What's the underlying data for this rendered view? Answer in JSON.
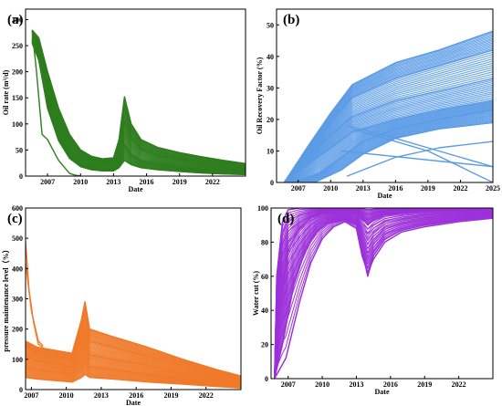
{
  "chart_data": [
    {
      "panel_label": "(a)",
      "type": "line",
      "xlabel": "Date",
      "ylabel": "Oil rate (m³/d)",
      "xlim": [
        2005,
        2025
      ],
      "ylim": [
        0,
        320
      ],
      "xticks": [
        "2007",
        "2010",
        "2013",
        "2016",
        "2019",
        "2022"
      ],
      "yticks": [
        "0",
        "50",
        "100",
        "150",
        "200",
        "250",
        "300"
      ],
      "color": "#2e7d1e",
      "series": [
        {
          "x": [
            2005.6,
            2006.2,
            2007.0,
            2008.0,
            2009.0,
            2010.0,
            2011.0,
            2012.0,
            2013.0,
            2013.5,
            2014.0,
            2014.6,
            2015.5,
            2017.0,
            2019.0,
            2021.0,
            2023.0,
            2025.0
          ],
          "y": [
            280,
            265,
            200,
            130,
            80,
            50,
            38,
            33,
            35,
            70,
            152,
            100,
            70,
            55,
            45,
            37,
            30,
            24
          ]
        },
        {
          "x": [
            2005.6,
            2006.2,
            2007.0,
            2008.0,
            2009.0,
            2010.0,
            2011.0,
            2012.0,
            2013.0,
            2013.5,
            2014.0,
            2014.6,
            2015.5,
            2017.0,
            2019.0,
            2021.0,
            2023.0,
            2025.0
          ],
          "y": [
            270,
            250,
            175,
            105,
            62,
            38,
            28,
            25,
            26,
            48,
            105,
            72,
            52,
            40,
            32,
            25,
            19,
            14
          ]
        },
        {
          "x": [
            2005.6,
            2006.2,
            2007.0,
            2008.0,
            2009.0,
            2010.0,
            2011.0,
            2012.0,
            2013.0,
            2013.5,
            2014.0,
            2014.6,
            2015.5,
            2017.0,
            2019.0,
            2021.0,
            2023.0,
            2025.0
          ],
          "y": [
            262,
            235,
            150,
            85,
            45,
            25,
            18,
            15,
            16,
            28,
            60,
            42,
            30,
            24,
            18,
            13,
            9,
            6
          ]
        },
        {
          "x": [
            2005.6,
            2006.2,
            2007.0,
            2008.0,
            2009.0,
            2010.0,
            2011.0,
            2012.0,
            2013.0,
            2013.5,
            2014.0,
            2014.6,
            2015.5,
            2017.0,
            2019.0,
            2021.0,
            2023.0,
            2025.0
          ],
          "y": [
            255,
            222,
            130,
            68,
            34,
            18,
            12,
            10,
            10,
            16,
            30,
            22,
            16,
            12,
            9,
            6,
            4,
            3
          ]
        },
        {
          "x": [
            2005.6,
            2006.0,
            2006.5,
            2007.0,
            2007.5,
            2008.0,
            2009.0,
            2009.5,
            2010.0
          ],
          "y": [
            280,
            200,
            80,
            70,
            50,
            30,
            5,
            2,
            0
          ]
        }
      ]
    },
    {
      "panel_label": "(b)",
      "type": "line",
      "xlabel": "Date",
      "ylabel": "Oil Recovery Factor (%)",
      "xlim": [
        2005,
        2025
      ],
      "ylim": [
        0,
        55
      ],
      "xticks": [
        "2007",
        "2010",
        "2013",
        "2016",
        "2019",
        "2022",
        "2025"
      ],
      "yticks": [
        "0",
        "10",
        "20",
        "30",
        "40",
        "50"
      ],
      "color": "#5b9be6",
      "series": [
        {
          "x": [
            2005.7,
            2008.0,
            2010.0,
            2012.0,
            2016.0,
            2020.0,
            2025.0
          ],
          "y": [
            0,
            12,
            22,
            31,
            38,
            42,
            48
          ]
        },
        {
          "x": [
            2005.7,
            2008.0,
            2010.0,
            2012.0,
            2016.0,
            2020.0,
            2025.0
          ],
          "y": [
            0,
            10,
            19,
            27,
            33,
            37,
            42
          ]
        },
        {
          "x": [
            2005.7,
            2008.0,
            2010.0,
            2012.0,
            2016.0,
            2020.0,
            2025.0
          ],
          "y": [
            0,
            8,
            15,
            21,
            26,
            29,
            33
          ]
        },
        {
          "x": [
            2005.7,
            2008.0,
            2010.0,
            2012.0,
            2016.0,
            2020.0,
            2025.0
          ],
          "y": [
            0,
            6,
            11,
            16,
            20,
            23,
            26
          ]
        },
        {
          "x": [
            2006.5,
            2009.0,
            2011.0,
            2013.0,
            2016.0,
            2020.0,
            2025.0
          ],
          "y": [
            0,
            3,
            8,
            13,
            17,
            20,
            23
          ]
        },
        {
          "x": [
            2008.5,
            2011.0,
            2013.0,
            2016.0,
            2020.0,
            2025.0
          ],
          "y": [
            0,
            4,
            9,
            14,
            17,
            19
          ]
        },
        {
          "x": [
            2011.5,
            2016.0,
            2020.0,
            2025.0
          ],
          "y": [
            2,
            8,
            11,
            13
          ]
        },
        {
          "x": [
            2011.5,
            2015.0,
            2020.0,
            2025.0
          ],
          "y": [
            18,
            15,
            10,
            5
          ]
        },
        {
          "x": [
            2012.0,
            2015.0,
            2019.0,
            2025.0
          ],
          "y": [
            17,
            14,
            10,
            0
          ]
        },
        {
          "x": [
            2011.0,
            2025.0
          ],
          "y": [
            10,
            5
          ]
        }
      ]
    },
    {
      "panel_label": "(c)",
      "type": "line",
      "xlabel": "Date",
      "ylabel": "pressure maintenance level（%）",
      "xlim": [
        2006.5,
        2025
      ],
      "ylim": [
        0,
        600
      ],
      "xticks": [
        "2007",
        "2010",
        "2013",
        "2016",
        "2019",
        "2022"
      ],
      "yticks": [
        "0",
        "100",
        "200",
        "300",
        "400",
        "500",
        "600"
      ],
      "color": "#f07a2a",
      "series": [
        {
          "x": [
            2006.5,
            2007.5,
            2009.0,
            2010.5,
            2011.3,
            2011.6,
            2012.0,
            2014.0,
            2017.0,
            2020.0,
            2023.0,
            2025.0
          ],
          "y": [
            160,
            140,
            130,
            120,
            230,
            290,
            200,
            175,
            140,
            100,
            65,
            45
          ]
        },
        {
          "x": [
            2006.5,
            2007.5,
            2009.0,
            2010.5,
            2011.3,
            2011.6,
            2012.0,
            2014.0,
            2017.0,
            2020.0,
            2023.0,
            2025.0
          ],
          "y": [
            140,
            120,
            110,
            100,
            170,
            210,
            160,
            140,
            110,
            80,
            50,
            35
          ]
        },
        {
          "x": [
            2006.5,
            2007.5,
            2009.0,
            2010.5,
            2011.3,
            2011.6,
            2012.0,
            2014.0,
            2017.0,
            2020.0,
            2023.0,
            2025.0
          ],
          "y": [
            110,
            95,
            85,
            75,
            120,
            150,
            115,
            100,
            80,
            55,
            35,
            22
          ]
        },
        {
          "x": [
            2006.5,
            2007.5,
            2009.0,
            2010.5,
            2011.3,
            2011.6,
            2012.0,
            2014.0,
            2017.0,
            2020.0,
            2023.0,
            2025.0
          ],
          "y": [
            75,
            65,
            58,
            50,
            80,
            100,
            75,
            65,
            50,
            35,
            20,
            12
          ]
        },
        {
          "x": [
            2006.5,
            2007.5,
            2009.0,
            2010.5,
            2011.3,
            2011.6,
            2012.0,
            2014.0,
            2017.0,
            2020.0,
            2023.0,
            2025.0
          ],
          "y": [
            40,
            35,
            30,
            25,
            40,
            50,
            40,
            35,
            25,
            18,
            10,
            5
          ]
        },
        {
          "x": [
            2006.5,
            2006.8,
            2007.2,
            2007.6,
            2008.0
          ],
          "y": [
            490,
            330,
            220,
            150,
            140
          ]
        },
        {
          "x": [
            2006.5,
            2007.0,
            2007.6,
            2008.0
          ],
          "y": [
            420,
            260,
            160,
            145
          ]
        }
      ]
    },
    {
      "panel_label": "(d)",
      "type": "line",
      "xlabel": "Date",
      "ylabel": "Water cut (%)",
      "xlim": [
        2005.5,
        2025
      ],
      "ylim": [
        0,
        100
      ],
      "xticks": [
        "2007",
        "2010",
        "2013",
        "2016",
        "2019",
        "2022"
      ],
      "yticks": [
        "0",
        "20",
        "40",
        "60",
        "80",
        "100"
      ],
      "color": "#9b30d9",
      "series": [
        {
          "x": [
            2005.8,
            2006.5,
            2007.5,
            2008.5,
            2009.5,
            2010.5,
            2012.0,
            2013.0,
            2013.5,
            2014.0,
            2014.5,
            2015.5,
            2017.0,
            2019.0,
            2022.0,
            2025.0
          ],
          "y": [
            0,
            20,
            55,
            75,
            86,
            91,
            93,
            90,
            75,
            60,
            72,
            82,
            87,
            90,
            93,
            95
          ]
        },
        {
          "x": [
            2005.8,
            2006.2,
            2007.0,
            2008.0,
            2009.0,
            2010.0,
            2012.0,
            2013.0,
            2013.5,
            2014.0,
            2014.5,
            2015.5,
            2017.0,
            2019.0,
            2022.0,
            2025.0
          ],
          "y": [
            0,
            40,
            75,
            88,
            94,
            97,
            98,
            97,
            94,
            90,
            93,
            96,
            97,
            98,
            99,
            99
          ]
        },
        {
          "x": [
            2005.8,
            2006.0,
            2006.5,
            2007.0,
            2008.0,
            2010.0,
            2013.0,
            2014.0,
            2016.0,
            2020.0,
            2025.0
          ],
          "y": [
            0,
            60,
            92,
            99,
            100,
            100,
            100,
            99,
            100,
            100,
            100
          ]
        },
        {
          "x": [
            2005.8,
            2006.8,
            2008.0,
            2009.0,
            2010.0,
            2011.0,
            2012.0,
            2013.0,
            2013.5,
            2014.0,
            2014.5,
            2015.5,
            2017.0,
            2019.0,
            2022.0,
            2025.0
          ],
          "y": [
            0,
            12,
            45,
            68,
            82,
            89,
            92,
            88,
            72,
            62,
            70,
            80,
            86,
            89,
            92,
            94
          ]
        }
      ]
    }
  ]
}
